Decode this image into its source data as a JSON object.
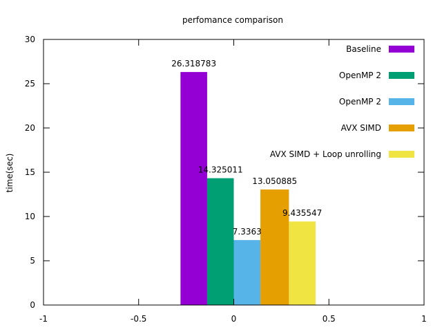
{
  "chart_data": {
    "type": "bar",
    "title": "perfomance comparison",
    "xlabel": "",
    "ylabel": "time(sec)",
    "xlim": [
      -1,
      1
    ],
    "ylim": [
      0,
      30
    ],
    "x_ticks": [
      "-1",
      "-0.5",
      "0",
      "0.5",
      "1"
    ],
    "y_ticks": [
      "0",
      "5",
      "10",
      "15",
      "20",
      "25",
      "30"
    ],
    "grid": false,
    "legend_position": "top-right",
    "series": [
      {
        "name": "Baseline",
        "value": 26.318783,
        "label": "26.318783",
        "color": "#9400d3",
        "x_range": [
          -0.28,
          -0.14
        ]
      },
      {
        "name": "OpenMP 2",
        "value": 14.325011,
        "label": "14.325011",
        "color": "#009e73",
        "x_range": [
          -0.14,
          0.0
        ]
      },
      {
        "name": "OpenMP 2",
        "value": 7.3363,
        "label": "7.3363",
        "color": "#56b4e9",
        "x_range": [
          0.0,
          0.14
        ]
      },
      {
        "name": "AVX SIMD",
        "value": 13.050885,
        "label": "13.050885",
        "color": "#e69f00",
        "x_range": [
          0.14,
          0.29
        ]
      },
      {
        "name": "AVX SIMD + Loop unrolling",
        "value": 9.435547,
        "label": "9.435547",
        "color": "#f0e442",
        "x_range": [
          0.29,
          0.43
        ]
      }
    ]
  }
}
